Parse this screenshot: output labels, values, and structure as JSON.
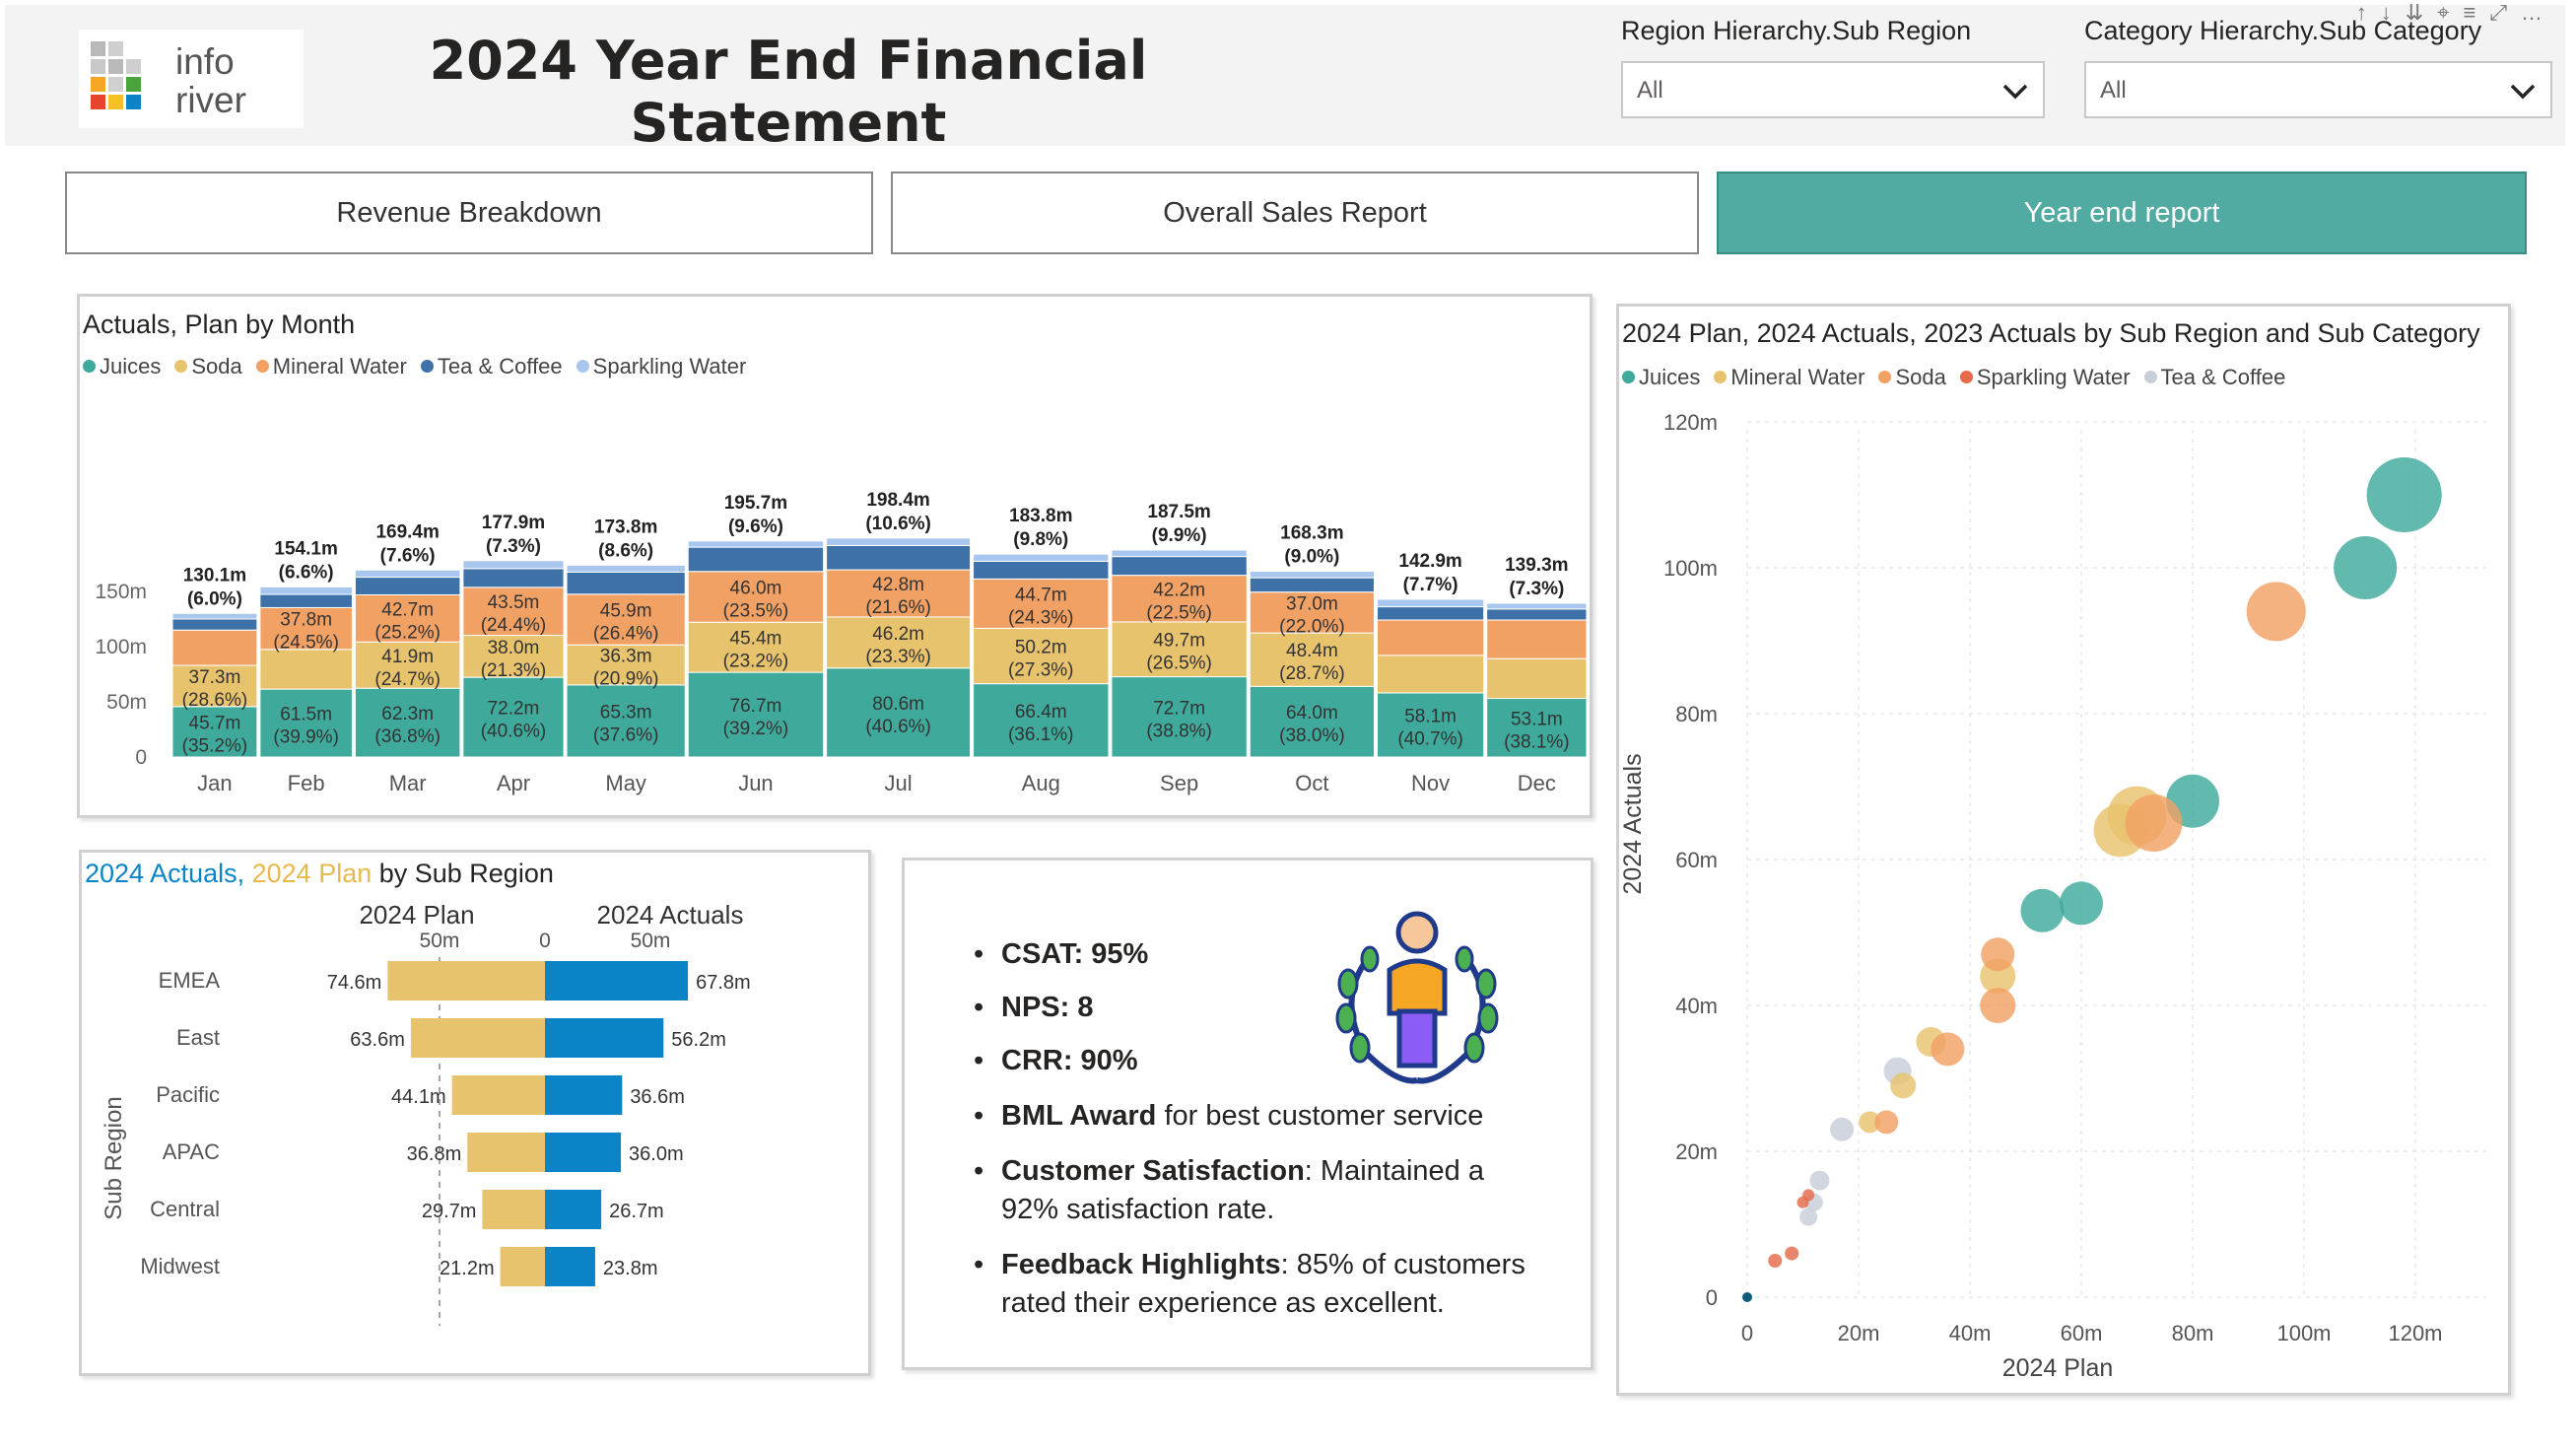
{
  "header": {
    "logo_text_top": "info",
    "logo_text_bottom": "river",
    "title": "2024 Year End Financial Statement"
  },
  "filters": [
    {
      "label": "Region Hierarchy.Sub Region",
      "value": "All"
    },
    {
      "label": "Category Hierarchy.Sub Category",
      "value": "All"
    }
  ],
  "nav": {
    "tabs": [
      {
        "label": "Revenue Breakdown",
        "active": false
      },
      {
        "label": "Overall Sales Report",
        "active": false
      },
      {
        "label": "Year end report",
        "active": true
      }
    ]
  },
  "colors": {
    "teal": "#3aa89a",
    "juices": "#3fa99b",
    "soda": "#e8c36e",
    "mineral_water": "#f2a165",
    "tea_coffee": "#3d71a8",
    "sparkling_water": "#a9c7ee",
    "plan": "#e8c36e",
    "actuals": "#0a84c6",
    "active_tab": "#52aba2"
  },
  "monthly": {
    "title": "Actuals, Plan by Month",
    "legend": [
      {
        "name": "Juices",
        "color": "#3fa99b"
      },
      {
        "name": "Soda",
        "color": "#e8c36e"
      },
      {
        "name": "Mineral Water",
        "color": "#f2a165"
      },
      {
        "name": "Tea & Coffee",
        "color": "#3d71a8"
      },
      {
        "name": "Sparkling Water",
        "color": "#a9c7ee"
      }
    ]
  },
  "chart_data": [
    {
      "type": "bar",
      "title": "Actuals, Plan by Month",
      "stacked": true,
      "categories": [
        "Jan",
        "Feb",
        "Mar",
        "Apr",
        "May",
        "Jun",
        "Jul",
        "Aug",
        "Sep",
        "Oct",
        "Nov",
        "Dec"
      ],
      "yticks": [
        "0",
        "50m",
        "100m",
        "150m"
      ],
      "ylim": [
        0,
        200
      ],
      "totals": [
        130.1,
        154.1,
        169.4,
        177.9,
        173.8,
        195.7,
        198.4,
        183.8,
        187.5,
        168.3,
        142.9,
        139.3
      ],
      "total_labels": [
        "130.1m",
        "154.1m",
        "169.4m",
        "177.9m",
        "173.8m",
        "195.7m",
        "198.4m",
        "183.8m",
        "187.5m",
        "168.3m",
        "142.9m",
        "139.3m"
      ],
      "total_pcts": [
        "(6.0%)",
        "(6.6%)",
        "(7.6%)",
        "(7.3%)",
        "(8.6%)",
        "(9.6%)",
        "(10.6%)",
        "(9.8%)",
        "(9.9%)",
        "(9.0%)",
        "(7.7%)",
        "(7.3%)"
      ],
      "widths": [
        1.0,
        1.09,
        1.24,
        1.19,
        1.4,
        1.6,
        1.7,
        1.6,
        1.6,
        1.47,
        1.26,
        1.18
      ],
      "series": [
        {
          "name": "Juices",
          "values": [
            45.7,
            61.5,
            62.3,
            72.2,
            65.3,
            76.7,
            80.6,
            66.4,
            72.7,
            64.0,
            58.1,
            53.1
          ],
          "labels": [
            "45.7m",
            "61.5m",
            "62.3m",
            "72.2m",
            "65.3m",
            "76.7m",
            "80.6m",
            "66.4m",
            "72.7m",
            "64.0m",
            "58.1m",
            "53.1m"
          ],
          "pcts": [
            "(35.2%)",
            "(39.9%)",
            "(36.8%)",
            "(40.6%)",
            "(37.6%)",
            "(39.2%)",
            "(40.6%)",
            "(36.1%)",
            "(38.8%)",
            "(38.0%)",
            "(40.7%)",
            "(38.1%)"
          ]
        },
        {
          "name": "Soda",
          "values": [
            37.3,
            36.0,
            41.9,
            38.0,
            36.3,
            45.4,
            46.2,
            50.2,
            49.7,
            48.4,
            34.0,
            36.0
          ],
          "labels": [
            "37.3m",
            "",
            "41.9m",
            "38.0m",
            "36.3m",
            "45.4m",
            "46.2m",
            "50.2m",
            "49.7m",
            "48.4m",
            "",
            ""
          ],
          "pcts": [
            "(28.6%)",
            "",
            "(24.7%)",
            "(21.3%)",
            "(20.9%)",
            "(23.2%)",
            "(23.3%)",
            "(27.3%)",
            "(26.5%)",
            "(28.7%)",
            "",
            ""
          ]
        },
        {
          "name": "Mineral Water",
          "values": [
            32.0,
            37.8,
            42.7,
            43.5,
            45.9,
            46.0,
            42.8,
            44.7,
            42.2,
            37.0,
            32.0,
            35.0
          ],
          "labels": [
            "",
            "37.8m",
            "42.7m",
            "43.5m",
            "45.9m",
            "46.0m",
            "42.8m",
            "44.7m",
            "42.2m",
            "37.0m",
            "",
            ""
          ],
          "pcts": [
            "",
            "(24.5%)",
            "(25.2%)",
            "(24.4%)",
            "(26.4%)",
            "(23.5%)",
            "(21.6%)",
            "(24.3%)",
            "(22.5%)",
            "(22.0%)",
            "",
            ""
          ]
        },
        {
          "name": "Tea & Coffee",
          "values": [
            10.0,
            12.0,
            16.0,
            17.0,
            20.0,
            22.0,
            22.0,
            16.0,
            17.0,
            13.0,
            12.0,
            10.0
          ],
          "labels": [
            "",
            "",
            "",
            "",
            "",
            "",
            "",
            "",
            "",
            "",
            "",
            ""
          ],
          "pcts": [
            "",
            "",
            "",
            "",
            "",
            "",
            "",
            "",
            "",
            "",
            "",
            ""
          ]
        },
        {
          "name": "Sparkling Water",
          "values": [
            5.1,
            6.8,
            6.5,
            7.2,
            6.3,
            5.6,
            6.8,
            6.5,
            5.9,
            5.9,
            6.8,
            5.2
          ],
          "labels": [
            "",
            "",
            "",
            "",
            "",
            "",
            "",
            "",
            "",
            "",
            "",
            ""
          ],
          "pcts": [
            "",
            "",
            "",
            "",
            "",
            "",
            "",
            "",
            "",
            "",
            "",
            ""
          ]
        }
      ]
    },
    {
      "type": "bar",
      "title_parts": [
        "2024 Actuals, ",
        "2024 Plan",
        " by  Sub Region"
      ],
      "orientation": "horizontal",
      "ylabel": "Sub Region",
      "left_header": "2024 Plan",
      "right_header": "2024 Actuals",
      "left_ticks": [
        "50m",
        "0"
      ],
      "right_ticks": [
        "50m"
      ],
      "categories": [
        "EMEA",
        "East",
        "Pacific",
        "APAC",
        "Central",
        "Midwest"
      ],
      "series": [
        {
          "name": "2024 Plan",
          "values": [
            74.6,
            63.6,
            44.1,
            36.8,
            29.7,
            21.2
          ],
          "labels": [
            "74.6m",
            "63.6m",
            "44.1m",
            "36.8m",
            "29.7m",
            "21.2m"
          ]
        },
        {
          "name": "2024 Actuals",
          "values": [
            67.8,
            56.2,
            36.6,
            36.0,
            26.7,
            23.8
          ],
          "labels": [
            "67.8m",
            "56.2m",
            "36.6m",
            "36.0m",
            "26.7m",
            "23.8m"
          ]
        }
      ]
    },
    {
      "type": "scatter",
      "title": "2024 Plan, 2024 Actuals, 2023 Actuals by Sub Region and Sub Category",
      "xlabel": "2024 Plan",
      "ylabel": "2024 Actuals",
      "xticks": [
        "0",
        "20m",
        "40m",
        "60m",
        "80m",
        "100m",
        "120m"
      ],
      "yticks": [
        "0",
        "20m",
        "40m",
        "60m",
        "80m",
        "100m",
        "120m"
      ],
      "xlim": [
        0,
        125
      ],
      "ylim": [
        0,
        120
      ],
      "legend": [
        {
          "name": "Juices",
          "color": "#3fa99b"
        },
        {
          "name": "Mineral Water",
          "color": "#e8c36e"
        },
        {
          "name": "Soda",
          "color": "#f2a165"
        },
        {
          "name": "Sparkling Water",
          "color": "#e46a4a"
        },
        {
          "name": "Tea & Coffee",
          "color": "#c8ced8"
        }
      ],
      "points": [
        {
          "series": "Juices",
          "x": 118,
          "y": 110,
          "size": 38
        },
        {
          "series": "Juices",
          "x": 111,
          "y": 100,
          "size": 32
        },
        {
          "series": "Soda",
          "x": 95,
          "y": 94,
          "size": 30
        },
        {
          "series": "Mineral Water",
          "x": 70,
          "y": 66,
          "size": 30
        },
        {
          "series": "Juices",
          "x": 80,
          "y": 68,
          "size": 27
        },
        {
          "series": "Mineral Water",
          "x": 67,
          "y": 64,
          "size": 27
        },
        {
          "series": "Soda",
          "x": 73,
          "y": 65,
          "size": 29
        },
        {
          "series": "Juices",
          "x": 60,
          "y": 54,
          "size": 22
        },
        {
          "series": "Juices",
          "x": 53,
          "y": 53,
          "size": 22
        },
        {
          "series": "Mineral Water",
          "x": 45,
          "y": 44,
          "size": 18
        },
        {
          "series": "Soda",
          "x": 45,
          "y": 47,
          "size": 17
        },
        {
          "series": "Soda",
          "x": 45,
          "y": 40,
          "size": 18
        },
        {
          "series": "Mineral Water",
          "x": 33,
          "y": 35,
          "size": 15
        },
        {
          "series": "Soda",
          "x": 36,
          "y": 34,
          "size": 17
        },
        {
          "series": "Tea & Coffee",
          "x": 27,
          "y": 31,
          "size": 14
        },
        {
          "series": "Mineral Water",
          "x": 28,
          "y": 29,
          "size": 13
        },
        {
          "series": "Tea & Coffee",
          "x": 17,
          "y": 23,
          "size": 12
        },
        {
          "series": "Mineral Water",
          "x": 22,
          "y": 24,
          "size": 11
        },
        {
          "series": "Soda",
          "x": 25,
          "y": 24,
          "size": 12
        },
        {
          "series": "Tea & Coffee",
          "x": 13,
          "y": 16,
          "size": 10
        },
        {
          "series": "Tea & Coffee",
          "x": 12,
          "y": 13,
          "size": 9
        },
        {
          "series": "Tea & Coffee",
          "x": 11,
          "y": 11,
          "size": 9
        },
        {
          "series": "Sparkling Water",
          "x": 11,
          "y": 14,
          "size": 6
        },
        {
          "series": "Sparkling Water",
          "x": 10,
          "y": 13,
          "size": 6
        },
        {
          "series": "Sparkling Water",
          "x": 8,
          "y": 6,
          "size": 7
        },
        {
          "series": "Sparkling Water",
          "x": 5,
          "y": 5,
          "size": 7
        },
        {
          "series": "Actuals",
          "x": 0,
          "y": 0,
          "size": 5
        }
      ]
    }
  ],
  "kpis": [
    {
      "bold": "CSAT: 95%",
      "rest": ""
    },
    {
      "bold": "NPS: 8",
      "rest": ""
    },
    {
      "bold": "CRR: 90%",
      "rest": ""
    },
    {
      "bold": "BML Award",
      "rest": " for best customer service"
    },
    {
      "bold": "Customer Satisfaction",
      "rest": ": Maintained a 92% satisfaction rate."
    },
    {
      "bold": "Feedback Highlights",
      "rest": ": 85% of customers rated their experience as excellent."
    }
  ],
  "icons": {
    "award": "award-person-icon",
    "chevron": "chevron-down-icon"
  }
}
